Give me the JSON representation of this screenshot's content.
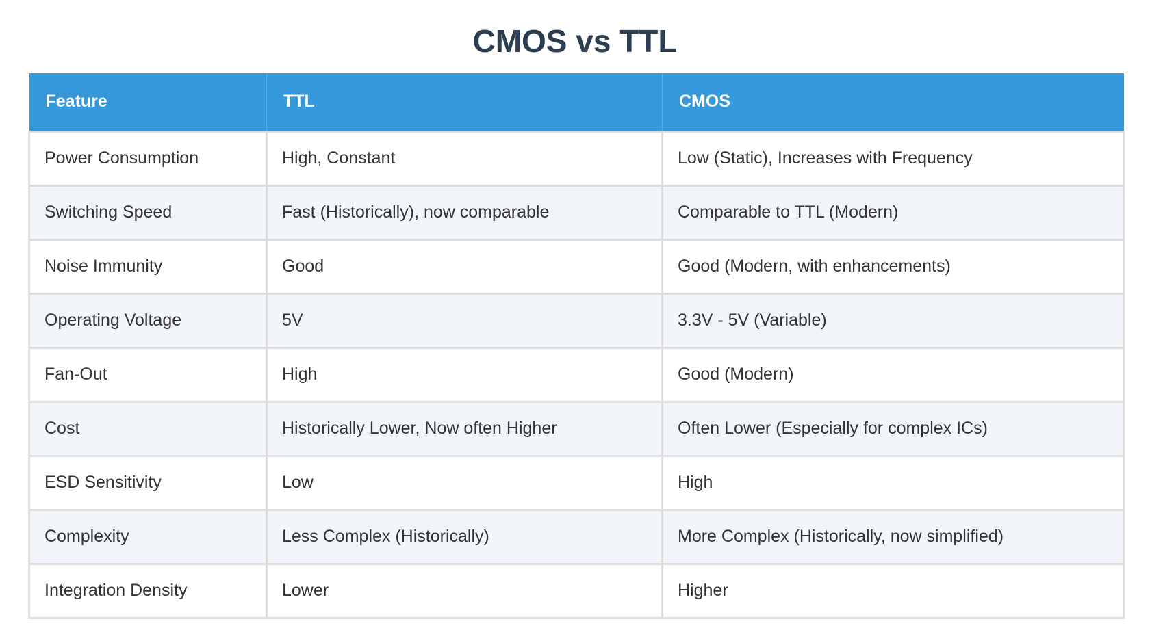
{
  "page": {
    "title": "CMOS vs TTL"
  },
  "table": {
    "headers": [
      "Feature",
      "TTL",
      "CMOS"
    ],
    "rows": [
      [
        "Power Consumption",
        "High, Constant",
        "Low (Static), Increases with Frequency"
      ],
      [
        "Switching Speed",
        "Fast (Historically), now comparable",
        "Comparable to TTL (Modern)"
      ],
      [
        "Noise Immunity",
        "Good",
        "Good (Modern, with enhancements)"
      ],
      [
        "Operating Voltage",
        "5V",
        "3.3V - 5V (Variable)"
      ],
      [
        "Fan-Out",
        "High",
        "Good (Modern)"
      ],
      [
        "Cost",
        "Historically Lower, Now often Higher",
        "Often Lower (Especially for complex ICs)"
      ],
      [
        "ESD Sensitivity",
        "Low",
        "High"
      ],
      [
        "Complexity",
        "Less Complex (Historically)",
        "More Complex (Historically, now simplified)"
      ],
      [
        "Integration Density",
        "Lower",
        "Higher"
      ]
    ]
  },
  "colors": {
    "title": "#2c3e50",
    "header_background": "#3498db",
    "header_text": "#ffffff",
    "row_alt_background": "#f2f5f9",
    "border": "#dddddd"
  }
}
